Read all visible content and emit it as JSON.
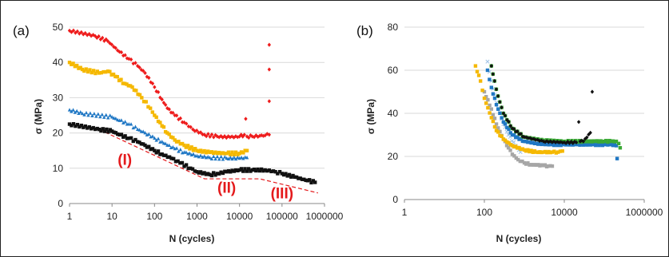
{
  "colors": {
    "red": "#ee1c1c",
    "yellow": "#f5b800",
    "blue": "#1f77c4",
    "black": "#111111",
    "green": "#3aa935",
    "gray": "#a6a6a6",
    "lightblue": "#9fc3e6",
    "guide": "#e41a1c"
  },
  "chart_data": [
    {
      "type": "scatter",
      "panel_label": "(a)",
      "title": "",
      "xlabel": "N (cycles)",
      "ylabel": "σ (MPa)",
      "xscale": "log",
      "xlim": [
        1,
        1000000
      ],
      "ylim": [
        0,
        50
      ],
      "x_ticks": [
        "1",
        "10",
        "100",
        "1000",
        "10000",
        "100000",
        "1000000"
      ],
      "y_ticks": [
        "0",
        "10",
        "20",
        "30",
        "40",
        "50"
      ],
      "grid": "horizontal",
      "series": [
        {
          "color": "red",
          "marker": "diamond",
          "x": [
            1,
            4,
            8,
            15,
            25,
            40,
            60,
            100,
            150,
            200,
            300,
            500,
            800,
            1500,
            3000,
            6000,
            10000,
            13000,
            14000,
            15000,
            20000,
            30000,
            40000,
            50000,
            50000,
            50000,
            50000
          ],
          "y": [
            49,
            47.5,
            46,
            43,
            41,
            39,
            37,
            33,
            29.5,
            27,
            25,
            23,
            21,
            19.5,
            19,
            18.8,
            19,
            19.5,
            24,
            19,
            19,
            19.2,
            19.3,
            19.5,
            29,
            38,
            45
          ]
        },
        {
          "color": "yellow",
          "marker": "square",
          "x": [
            1,
            2,
            5,
            8,
            12,
            20,
            30,
            50,
            80,
            100,
            150,
            200,
            300,
            500,
            1000,
            2000,
            5000,
            10000,
            15000
          ],
          "y": [
            40,
            38,
            37,
            37.5,
            36,
            34,
            33,
            30,
            27,
            25,
            22,
            20,
            18,
            16.5,
            15,
            14.5,
            14.2,
            14.2,
            15
          ]
        },
        {
          "color": "blue",
          "marker": "triangle",
          "x": [
            1,
            2,
            10,
            15,
            25,
            40,
            60,
            100,
            150,
            200,
            300,
            500,
            1000,
            2000,
            5000,
            10000,
            15000
          ],
          "y": [
            26.5,
            25.5,
            24.5,
            23.5,
            22.5,
            21,
            20,
            18.5,
            17.5,
            16.5,
            15.5,
            14.5,
            13.5,
            13,
            12.8,
            12.8,
            13
          ]
        },
        {
          "color": "black",
          "marker": "square",
          "x": [
            1,
            5,
            10,
            15,
            25,
            40,
            60,
            100,
            150,
            250,
            400,
            700,
            1000,
            2000,
            3000,
            5000,
            10000,
            20000,
            40000,
            70000,
            100000,
            200000,
            400000,
            600000
          ],
          "y": [
            22.5,
            21,
            20.5,
            19.5,
            18.5,
            17.5,
            16.5,
            15,
            14,
            12.8,
            11.5,
            10,
            9,
            8.2,
            8.5,
            9,
            9.5,
            9.5,
            9.5,
            9,
            8.5,
            7.5,
            6.5,
            6
          ]
        }
      ],
      "annotations": [
        {
          "text": "(I)",
          "x": 20,
          "y": 11
        },
        {
          "text": "(II)",
          "x": 5000,
          "y": 3
        },
        {
          "text": "(III)",
          "x": 100000,
          "y": 1.5
        }
      ],
      "guide_line": {
        "x": [
          5,
          1500,
          30000,
          700000
        ],
        "y": [
          21,
          7,
          7,
          3
        ]
      }
    },
    {
      "type": "scatter",
      "panel_label": "(b)",
      "title": "",
      "xlabel": "N (cycles)",
      "ylabel": "σ (MPa)",
      "xscale": "log",
      "xlim": [
        1,
        1000000
      ],
      "ylim": [
        0,
        80
      ],
      "x_ticks": [
        "1",
        "100",
        "10000",
        "1000000"
      ],
      "y_ticks": [
        "0",
        "20",
        "40",
        "60",
        "80"
      ],
      "grid": "horizontal",
      "series": [
        {
          "color": "gray",
          "marker": "square",
          "x": [
            100,
            150,
            200,
            300,
            400,
            500,
            700,
            1000,
            1500,
            2000,
            3000,
            4000,
            5000
          ],
          "y": [
            50,
            42,
            35,
            28,
            24,
            21,
            18.5,
            17,
            16.2,
            16,
            15.8,
            15.5,
            15.5
          ]
        },
        {
          "color": "lightblue",
          "marker": "cross",
          "x": [
            120,
            150,
            200,
            300,
            400,
            600,
            800
          ],
          "y": [
            64,
            55,
            45,
            35,
            30,
            25,
            22
          ]
        },
        {
          "color": "yellow",
          "marker": "square",
          "x": [
            60,
            80,
            100,
            150,
            200,
            300,
            500,
            1000,
            2000,
            3000,
            5000,
            7000,
            9000
          ],
          "y": [
            62,
            55,
            47,
            38,
            32,
            28,
            25,
            23,
            22,
            22,
            22,
            22,
            22.5
          ]
        },
        {
          "color": "blue",
          "marker": "square",
          "x": [
            120,
            150,
            200,
            300,
            500,
            1000,
            2000,
            5000,
            10000,
            20000,
            50000,
            100000,
            150000,
            200000,
            210000
          ],
          "y": [
            60,
            52,
            44,
            36,
            30,
            27,
            26,
            25.5,
            25.5,
            25.5,
            25.5,
            25.5,
            25.5,
            25,
            19
          ]
        },
        {
          "color": "green",
          "marker": "square",
          "x": [
            150,
            180,
            220,
            300,
            500,
            1000,
            3000,
            10000,
            30000,
            60000,
            100000,
            150000,
            200000,
            230000,
            250000
          ],
          "y": [
            62,
            55,
            48,
            40,
            33,
            29,
            27.5,
            27,
            27,
            27,
            27,
            27,
            27,
            26,
            24
          ]
        },
        {
          "color": "black",
          "marker": "diamond",
          "x": [
            150,
            180,
            220,
            300,
            500,
            1000,
            3000,
            10000,
            20000,
            23000,
            25000,
            30000,
            45000,
            50000
          ],
          "y": [
            62,
            55,
            48,
            40,
            33,
            29,
            27,
            26.5,
            26.5,
            36,
            27,
            27,
            31,
            50
          ]
        }
      ]
    }
  ]
}
